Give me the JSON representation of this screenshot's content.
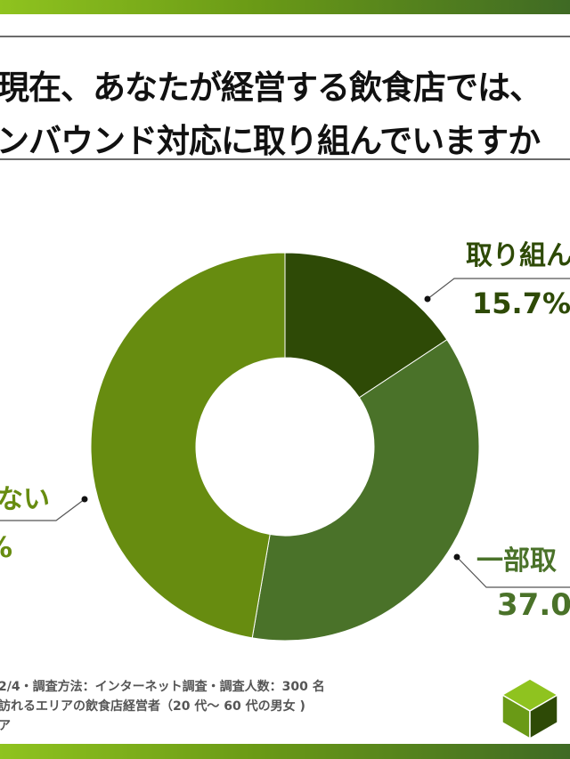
{
  "header": {
    "title_line1": "現在、あなたが経営する飲食店では、",
    "title_line2": "ンバウンド対応に取り組んでいますか"
  },
  "chart_data": {
    "type": "pie",
    "style": "donut",
    "slices": [
      {
        "label": "取り組ん",
        "value_label": "15.7%",
        "value": 15.7,
        "color": "#2e4a06"
      },
      {
        "label": "一部取",
        "value_label": "37.0",
        "value": 37.0,
        "color": "#4a7229"
      },
      {
        "label": "ない",
        "value_label": "%",
        "value": 47.3,
        "color": "#678c10"
      }
    ]
  },
  "footer": {
    "line1": "2/4・調査方法：インターネット調査・調査人数：300 名",
    "line2": "訪れるエリアの飲食店経営者（20 代～ 60 代の男女 )",
    "line3": "ア"
  },
  "colors": {
    "accent": "#8fc31f",
    "dark": "#3f6a24"
  }
}
